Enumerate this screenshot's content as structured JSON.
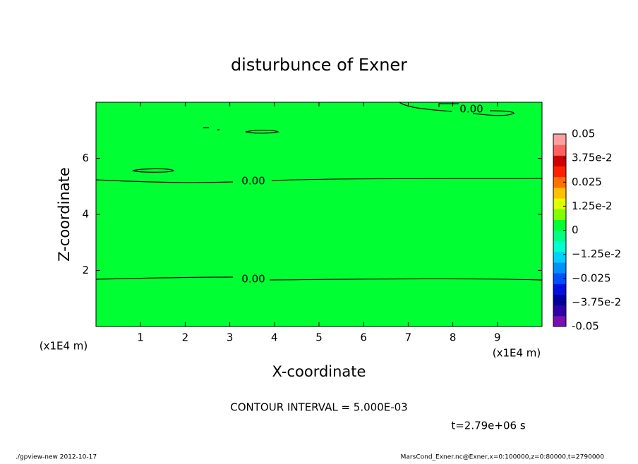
{
  "chart_data": {
    "type": "contour",
    "title": "disturbunce of Exner",
    "x_label": "X-coordinate",
    "y_label": "Z-coordinate",
    "x_unit": "(x1E4 m)",
    "y_unit": "(x1E4 m)",
    "xlim": [
      0,
      10
    ],
    "xticks": [
      1,
      2,
      3,
      4,
      5,
      6,
      7,
      8,
      9
    ],
    "ylim": [
      0,
      8
    ],
    "yticks": [
      2,
      4,
      6
    ],
    "fill_color": "#00ff33",
    "contour_labels": [
      "0.00",
      "0.00",
      "0.00"
    ],
    "colorbar": {
      "lim": [
        -0.05,
        0.05
      ],
      "ticks": [
        -0.05,
        {
          "value": -0.0375,
          "label": "−3.75e-2"
        },
        {
          "value": -0.025,
          "label": "−0.025"
        },
        {
          "value": -0.0125,
          "label": "−1.25e-2"
        },
        0,
        {
          "value": 0.0125,
          "label": "1.25e-2"
        },
        0.025,
        {
          "value": 0.0375,
          "label": "3.75e-2"
        },
        0.05
      ],
      "colors": [
        "#7a10b0",
        "#3000a8",
        "#0000a0",
        "#0010e0",
        "#0050ff",
        "#0090ff",
        "#00d0ff",
        "#00ffd0",
        "#00ff80",
        "#00ff33",
        "#80ff00",
        "#e0ff00",
        "#ffc000",
        "#ff7000",
        "#ff2000",
        "#d00000",
        "#ff6060",
        "#ffa0a0"
      ]
    },
    "contour_interval": "CONTOUR INTERVAL = 5.000E-03",
    "time_label": "t=2.79e+06 s",
    "footer_left": "./gpview-new  2012-10-17",
    "footer_right": "MarsCond_Exner.nc@Exner,x=0:100000,z=0:80000,t=2790000"
  }
}
